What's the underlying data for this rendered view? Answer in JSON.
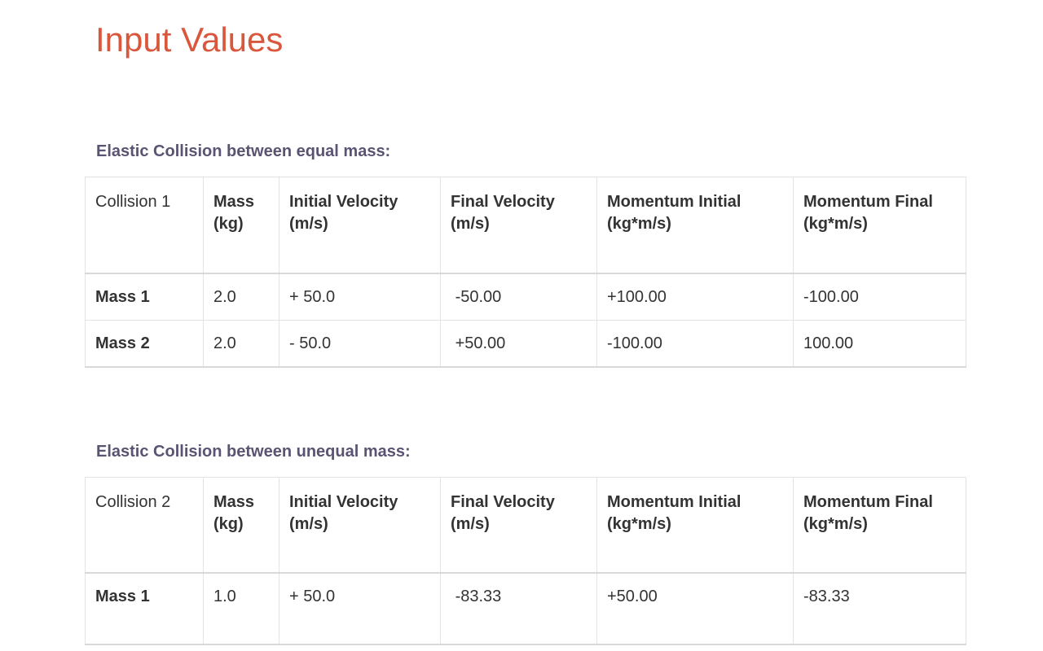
{
  "page": {
    "title": "Input Values"
  },
  "colors": {
    "title_accent": "#d9573c",
    "section_heading": "#5a5372",
    "body_text": "#333333",
    "table_border": "#e3e3e3",
    "header_rule": "#d9d9d9"
  },
  "sections": [
    {
      "heading": "Elastic Collision between equal mass:",
      "table": {
        "columns": [
          "Collision 1",
          "Mass (kg)",
          "Initial Velocity (m/s)",
          "Final Velocity (m/s)",
          "Momentum Initial (kg*m/s)",
          "Momentum Final (kg*m/s)"
        ],
        "rows": [
          [
            "Mass 1",
            "2.0",
            "+ 50.0",
            " -50.00",
            "+100.00",
            "-100.00"
          ],
          [
            "Mass 2",
            "2.0",
            "- 50.0",
            " +50.00",
            "-100.00",
            "100.00"
          ]
        ]
      }
    },
    {
      "heading": "Elastic Collision between unequal mass:",
      "table": {
        "columns": [
          "Collision 2",
          "Mass (kg)",
          "Initial Velocity (m/s)",
          "Final Velocity (m/s)",
          "Momentum Initial (kg*m/s)",
          "Momentum Final (kg*m/s)"
        ],
        "rows": [
          [
            "Mass 1",
            "1.0",
            "+ 50.0",
            " -83.33",
            "+50.00",
            "-83.33"
          ]
        ]
      }
    }
  ]
}
